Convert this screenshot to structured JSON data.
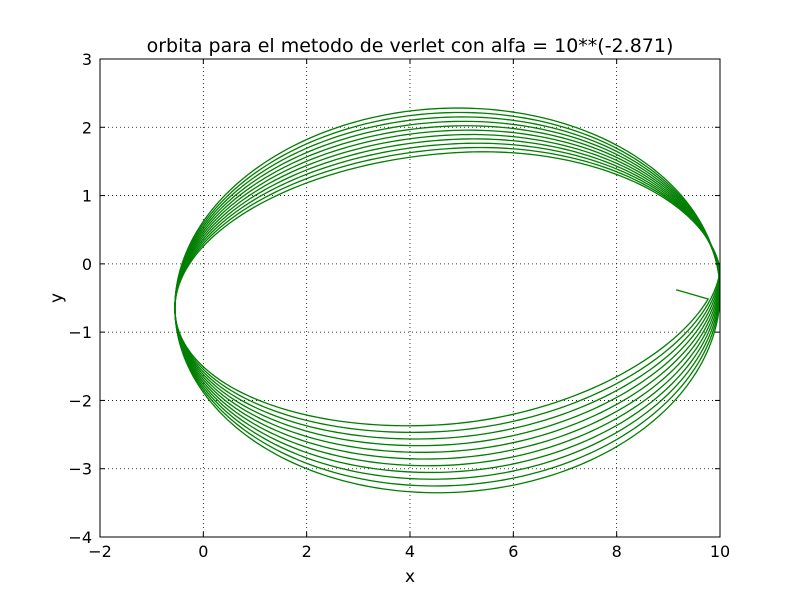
{
  "chart_data": {
    "type": "line",
    "title": "orbita para el metodo de verlet con alfa = 10**(-2.871)",
    "xlabel": "x",
    "ylabel": "y",
    "xlim": [
      -2,
      10
    ],
    "ylim": [
      -4,
      3
    ],
    "xticks": [
      -2,
      0,
      2,
      4,
      6,
      8,
      10
    ],
    "yticks": [
      -4,
      -3,
      -2,
      -1,
      0,
      1,
      2,
      3
    ],
    "xtick_labels": [
      "−2",
      "0",
      "2",
      "4",
      "6",
      "8",
      "10"
    ],
    "ytick_labels": [
      "−4",
      "−3",
      "−2",
      "−1",
      "0",
      "1",
      "2",
      "3"
    ],
    "grid": true,
    "line_color": "#007f00",
    "orbit": {
      "n_loops": 11,
      "aphelion_x": 10,
      "perihelion_x": -0.55,
      "top_first": 2.28,
      "top_last": 1.62,
      "bottom_first": -3.35,
      "bottom_last": -2.35,
      "end_point": [
        9.15,
        -0.38
      ]
    }
  }
}
